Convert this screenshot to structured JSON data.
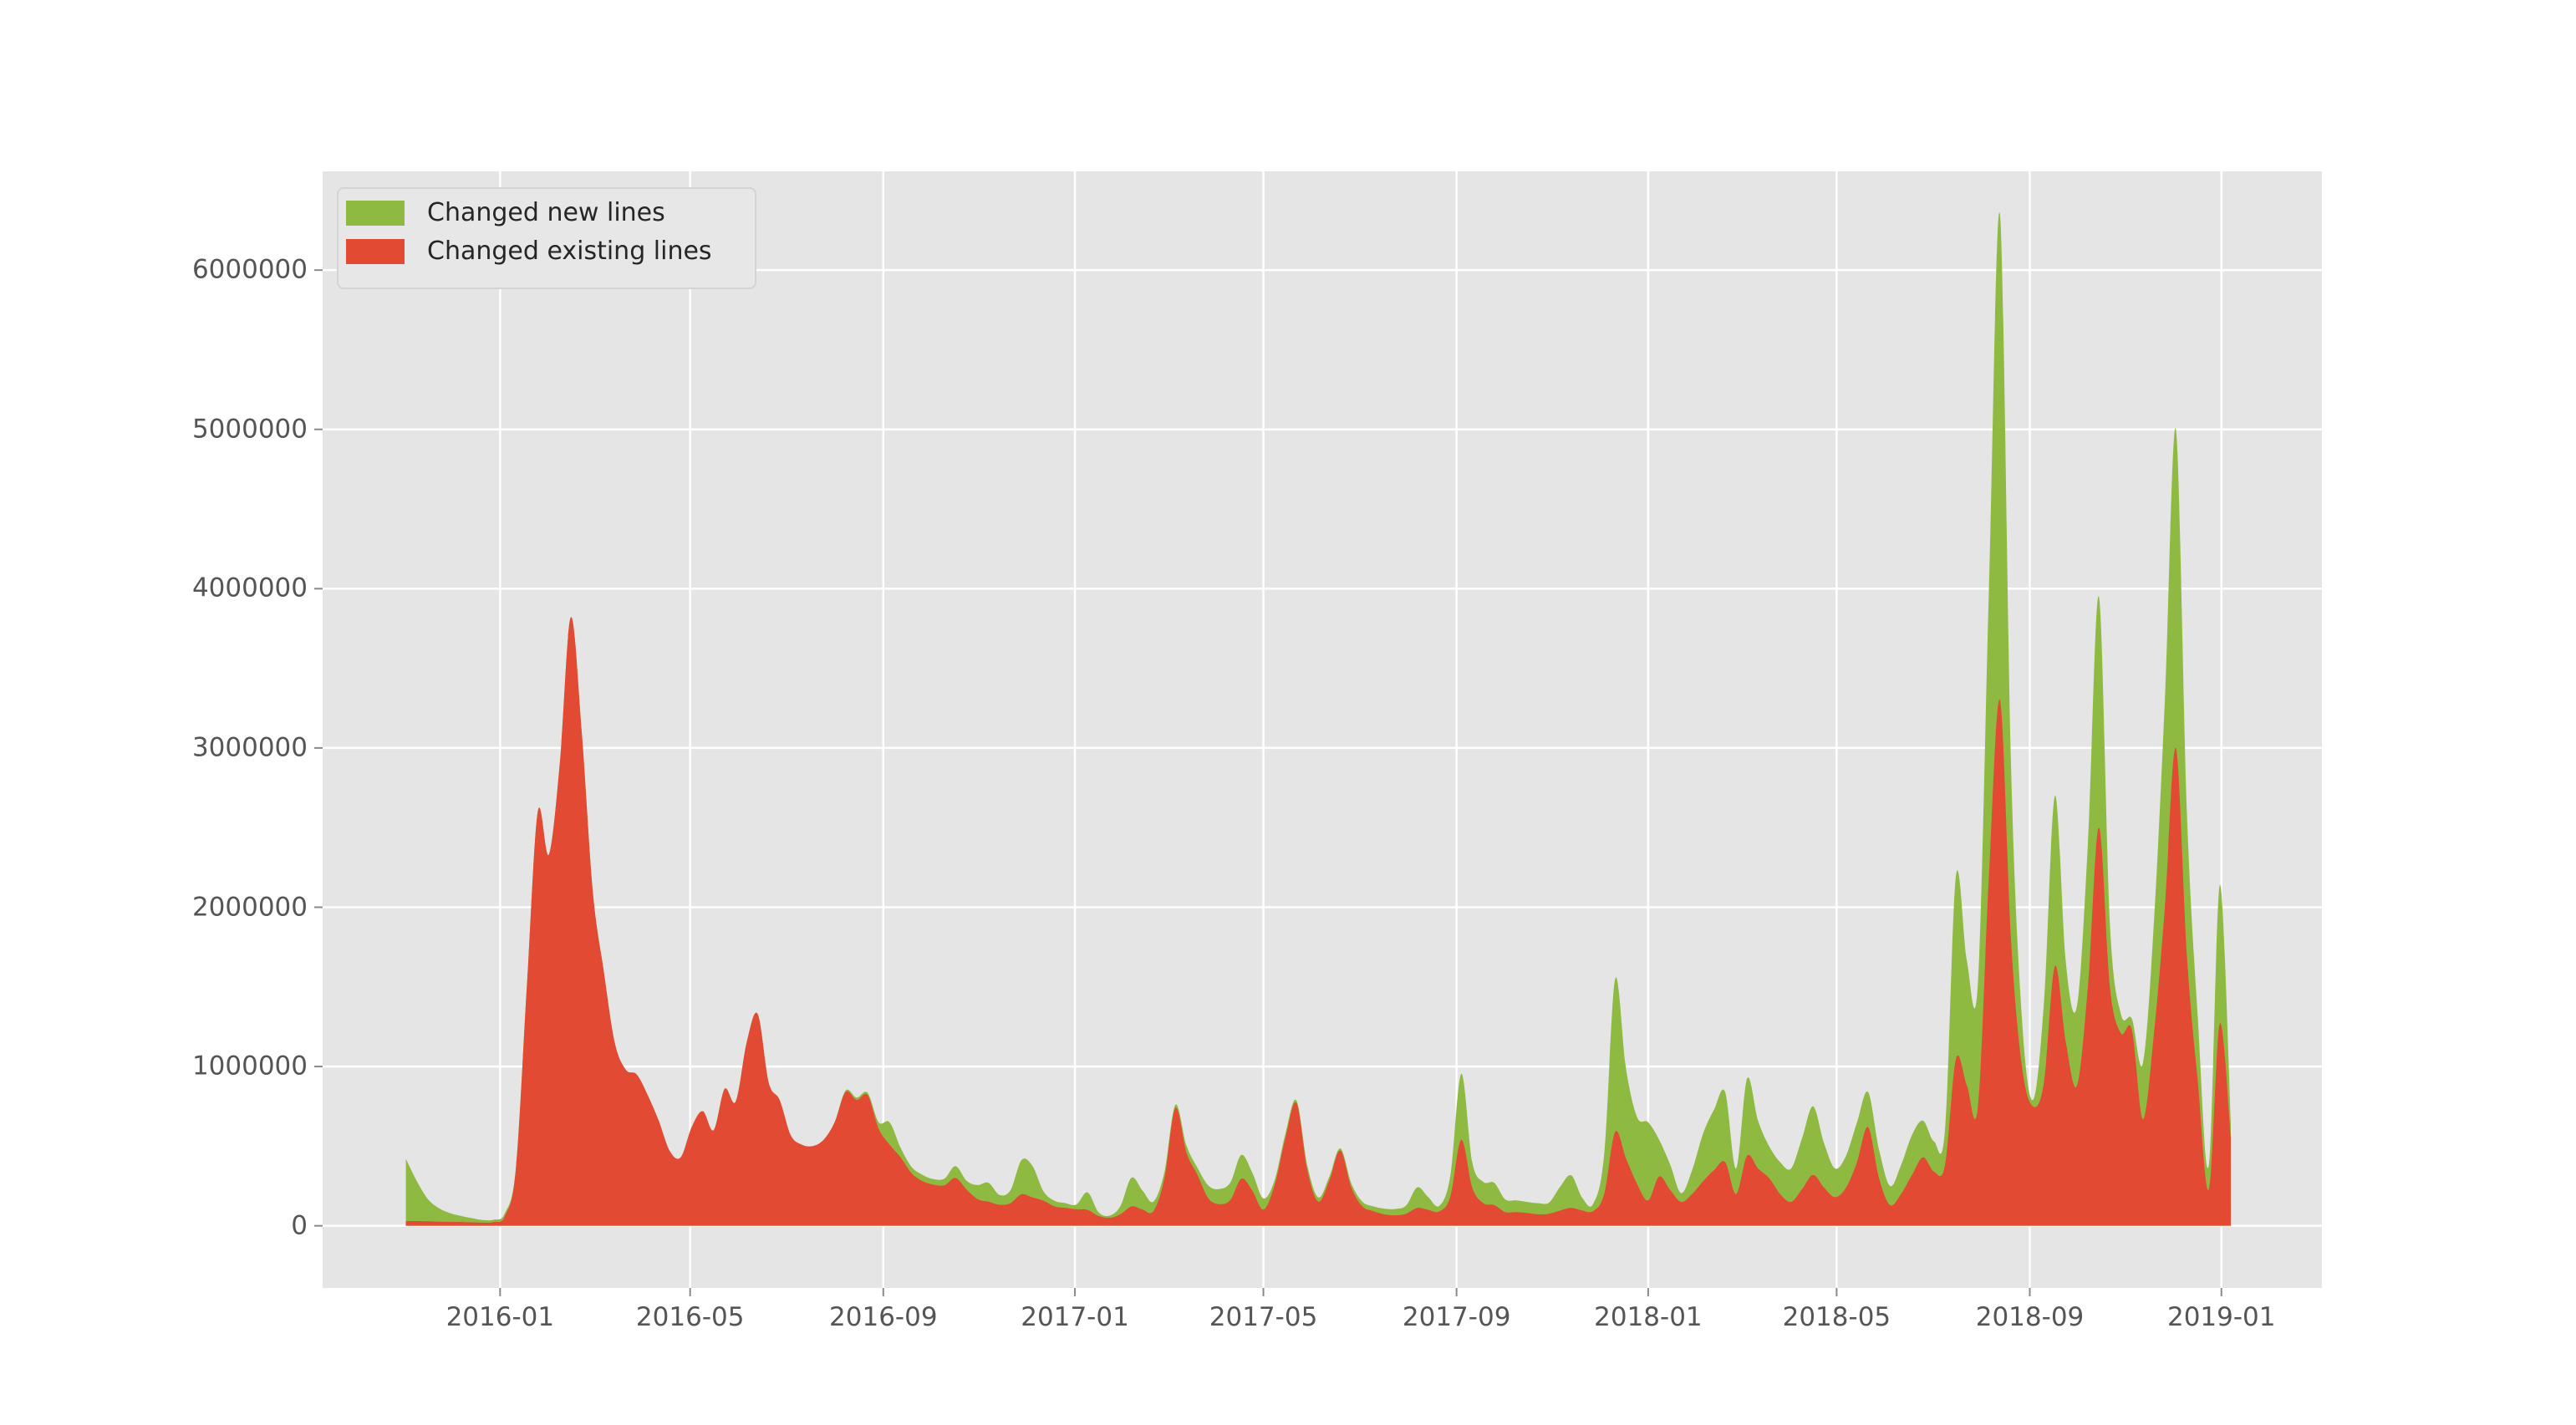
{
  "colors": {
    "page_background": "#ffffff",
    "plot_background": "#e5e5e5",
    "grid": "#ffffff",
    "tick_label": "#555555",
    "tick_mark": "#8a8a8a",
    "legend_background": "#e7e7e7",
    "legend_border": "#d4d4d4"
  },
  "chart_data": {
    "type": "area",
    "title": "",
    "xlabel": "",
    "ylabel": "",
    "grid": "on",
    "legend_position": "upper-left",
    "mode": "stacked (existing lines at bottom, new lines on top)",
    "xlim": [
      "2015-09-10",
      "2019-03-06"
    ],
    "ylim": [
      -390000,
      6620000
    ],
    "x_ticks": [
      {
        "date": "2016-01-01",
        "label": "2016-01"
      },
      {
        "date": "2016-05-01",
        "label": "2016-05"
      },
      {
        "date": "2016-09-01",
        "label": "2016-09"
      },
      {
        "date": "2017-01-01",
        "label": "2017-01"
      },
      {
        "date": "2017-05-01",
        "label": "2017-05"
      },
      {
        "date": "2017-09-01",
        "label": "2017-09"
      },
      {
        "date": "2018-01-01",
        "label": "2018-01"
      },
      {
        "date": "2018-05-01",
        "label": "2018-05"
      },
      {
        "date": "2018-09-01",
        "label": "2018-09"
      },
      {
        "date": "2019-01-01",
        "label": "2019-01"
      }
    ],
    "y_ticks": [
      {
        "value": 0,
        "label": "0"
      },
      {
        "value": 1000000,
        "label": "1000000"
      },
      {
        "value": 2000000,
        "label": "2000000"
      },
      {
        "value": 3000000,
        "label": "3000000"
      },
      {
        "value": 4000000,
        "label": "4000000"
      },
      {
        "value": 5000000,
        "label": "5000000"
      },
      {
        "value": 6000000,
        "label": "6000000"
      }
    ],
    "dates": [
      "2015-11-02",
      "2015-11-09",
      "2015-11-16",
      "2015-11-23",
      "2015-11-30",
      "2015-12-07",
      "2015-12-14",
      "2015-12-21",
      "2015-12-28",
      "2016-01-04",
      "2016-01-11",
      "2016-01-18",
      "2016-01-25",
      "2016-02-01",
      "2016-02-08",
      "2016-02-15",
      "2016-02-22",
      "2016-02-29",
      "2016-03-07",
      "2016-03-14",
      "2016-03-21",
      "2016-03-28",
      "2016-04-04",
      "2016-04-11",
      "2016-04-18",
      "2016-04-25",
      "2016-05-02",
      "2016-05-09",
      "2016-05-16",
      "2016-05-23",
      "2016-05-30",
      "2016-06-06",
      "2016-06-13",
      "2016-06-20",
      "2016-06-27",
      "2016-07-04",
      "2016-07-11",
      "2016-07-18",
      "2016-07-25",
      "2016-08-01",
      "2016-08-08",
      "2016-08-15",
      "2016-08-22",
      "2016-08-29",
      "2016-09-05",
      "2016-09-12",
      "2016-09-19",
      "2016-09-26",
      "2016-10-03",
      "2016-10-10",
      "2016-10-17",
      "2016-10-24",
      "2016-10-31",
      "2016-11-07",
      "2016-11-14",
      "2016-11-21",
      "2016-11-28",
      "2016-12-05",
      "2016-12-12",
      "2016-12-19",
      "2016-12-26",
      "2017-01-02",
      "2017-01-09",
      "2017-01-16",
      "2017-01-23",
      "2017-01-30",
      "2017-02-06",
      "2017-02-13",
      "2017-02-20",
      "2017-02-27",
      "2017-03-06",
      "2017-03-13",
      "2017-03-20",
      "2017-03-27",
      "2017-04-03",
      "2017-04-10",
      "2017-04-17",
      "2017-04-24",
      "2017-05-01",
      "2017-05-08",
      "2017-05-15",
      "2017-05-22",
      "2017-05-29",
      "2017-06-05",
      "2017-06-12",
      "2017-06-19",
      "2017-06-26",
      "2017-07-03",
      "2017-07-10",
      "2017-07-17",
      "2017-07-24",
      "2017-07-31",
      "2017-08-07",
      "2017-08-14",
      "2017-08-21",
      "2017-08-28",
      "2017-09-04",
      "2017-09-11",
      "2017-09-18",
      "2017-09-25",
      "2017-10-02",
      "2017-10-09",
      "2017-10-16",
      "2017-10-23",
      "2017-10-30",
      "2017-11-06",
      "2017-11-13",
      "2017-11-20",
      "2017-11-27",
      "2017-12-04",
      "2017-12-11",
      "2017-12-18",
      "2017-12-25",
      "2018-01-01",
      "2018-01-08",
      "2018-01-15",
      "2018-01-22",
      "2018-01-29",
      "2018-02-05",
      "2018-02-12",
      "2018-02-19",
      "2018-02-26",
      "2018-03-05",
      "2018-03-12",
      "2018-03-19",
      "2018-03-26",
      "2018-04-02",
      "2018-04-09",
      "2018-04-16",
      "2018-04-23",
      "2018-04-30",
      "2018-05-07",
      "2018-05-14",
      "2018-05-21",
      "2018-05-28",
      "2018-06-04",
      "2018-06-11",
      "2018-06-18",
      "2018-06-25",
      "2018-07-02",
      "2018-07-09",
      "2018-07-16",
      "2018-07-23",
      "2018-07-30",
      "2018-08-06",
      "2018-08-13",
      "2018-08-20",
      "2018-08-27",
      "2018-09-03",
      "2018-09-10",
      "2018-09-17",
      "2018-09-24",
      "2018-10-01",
      "2018-10-08",
      "2018-10-15",
      "2018-10-22",
      "2018-10-29",
      "2018-11-05",
      "2018-11-12",
      "2018-11-19",
      "2018-11-26",
      "2018-12-03",
      "2018-12-10",
      "2018-12-17",
      "2018-12-24",
      "2018-12-31",
      "2019-01-07"
    ],
    "series": [
      {
        "name": "Changed new lines",
        "color": "#8eba42",
        "values": [
          390000,
          250000,
          140000,
          85000,
          55000,
          38000,
          26000,
          16000,
          14000,
          18000,
          10000,
          0,
          0,
          0,
          0,
          0,
          0,
          0,
          0,
          0,
          0,
          0,
          0,
          0,
          0,
          0,
          0,
          0,
          0,
          0,
          0,
          0,
          0,
          0,
          0,
          0,
          0,
          0,
          0,
          0,
          10000,
          15000,
          15000,
          40000,
          140000,
          60000,
          40000,
          40000,
          35000,
          42000,
          75000,
          55000,
          88000,
          118000,
          62000,
          82000,
          215000,
          198000,
          58000,
          36000,
          30000,
          30000,
          110000,
          24000,
          14000,
          52000,
          180000,
          120000,
          60000,
          40000,
          20000,
          45000,
          45000,
          80000,
          95000,
          110000,
          150000,
          112000,
          70000,
          32000,
          26000,
          16000,
          30000,
          26000,
          24000,
          14000,
          26000,
          30000,
          30000,
          36000,
          40000,
          52000,
          130000,
          80000,
          36000,
          130000,
          415000,
          160000,
          134000,
          140000,
          80000,
          74000,
          70000,
          70000,
          70000,
          150000,
          205000,
          80000,
          46000,
          250000,
          960000,
          560000,
          420000,
          490000,
          230000,
          160000,
          55000,
          150000,
          300000,
          380000,
          440000,
          160000,
          485000,
          300000,
          200000,
          200000,
          210000,
          320000,
          430000,
          280000,
          180000,
          200000,
          250000,
          220000,
          180000,
          120000,
          180000,
          250000,
          230000,
          190000,
          220000,
          1150000,
          780000,
          780000,
          1800000,
          3050000,
          1100000,
          300000,
          40000,
          500000,
          1070000,
          500000,
          500000,
          900000,
          1450000,
          400000,
          120000,
          70000,
          350000,
          700000,
          1300000,
          2000000,
          900000,
          400000,
          150000,
          870000,
          100000
        ]
      },
      {
        "name": "Changed existing lines",
        "color": "#e24a33",
        "values": [
          30000,
          30000,
          28000,
          26000,
          25000,
          24000,
          22000,
          20000,
          24000,
          60000,
          350000,
          1500000,
          2600000,
          2330000,
          2900000,
          3820000,
          3100000,
          2100000,
          1600000,
          1150000,
          980000,
          950000,
          820000,
          660000,
          470000,
          430000,
          620000,
          720000,
          600000,
          860000,
          780000,
          1150000,
          1330000,
          900000,
          790000,
          570000,
          510000,
          500000,
          540000,
          650000,
          840000,
          790000,
          820000,
          610000,
          510000,
          430000,
          330000,
          280000,
          258000,
          255000,
          300000,
          228000,
          168000,
          152000,
          132000,
          142000,
          198000,
          178000,
          158000,
          122000,
          112000,
          104000,
          100000,
          62000,
          50000,
          72000,
          122000,
          102000,
          92000,
          300000,
          740000,
          460000,
          320000,
          172000,
          136000,
          162000,
          295000,
          220000,
          102000,
          250000,
          550000,
          772000,
          350000,
          152000,
          285000,
          472000,
          240000,
          122000,
          92000,
          72000,
          66000,
          76000,
          112000,
          100000,
          90000,
          182000,
          540000,
          240000,
          142000,
          130000,
          86000,
          86000,
          80000,
          72000,
          76000,
          96000,
          112000,
          96000,
          92000,
          200000,
          590000,
          420000,
          262000,
          160000,
          310000,
          225000,
          150000,
          200000,
          280000,
          350000,
          400000,
          200000,
          440000,
          360000,
          300000,
          200000,
          150000,
          230000,
          320000,
          240000,
          180000,
          240000,
          400000,
          620000,
          300000,
          130000,
          200000,
          320000,
          430000,
          340000,
          380000,
          1050000,
          880000,
          750000,
          2200000,
          3300000,
          1800000,
          1000000,
          750000,
          900000,
          1630000,
          1150000,
          880000,
          1500000,
          2500000,
          1500000,
          1210000,
          1230000,
          670000,
          1200000,
          2000000,
          3000000,
          1700000,
          900000,
          230000,
          1270000,
          550000
        ]
      }
    ]
  }
}
